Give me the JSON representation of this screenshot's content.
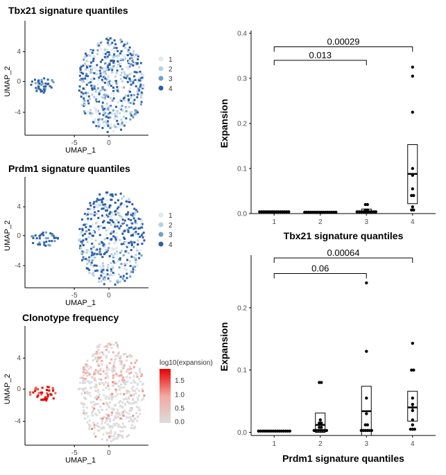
{
  "umap_panels": [
    {
      "title": "Tbx21 signature quantiles",
      "xlabel": "UMAP_1",
      "ylabel": "UMAP_2",
      "xticks": [
        "-5",
        "0"
      ],
      "yticks": [
        "4",
        "0",
        "-4"
      ],
      "legend_title": "",
      "legend": [
        "1",
        "2",
        "3",
        "4"
      ],
      "colors": [
        "#dfe9f5",
        "#b8cfe6",
        "#6e9ecb",
        "#2a5ea6"
      ]
    },
    {
      "title": "Prdm1 signature quantiles",
      "xlabel": "UMAP_1",
      "ylabel": "UMAP_2",
      "xticks": [
        "-5",
        "0"
      ],
      "yticks": [
        "4",
        "0",
        "-4"
      ],
      "legend_title": "",
      "legend": [
        "1",
        "2",
        "3",
        "4"
      ],
      "colors": [
        "#dfe9f5",
        "#b8cfe6",
        "#6e9ecb",
        "#2a5ea6"
      ]
    },
    {
      "title": "Clonotype frequency",
      "xlabel": "UMAP_1",
      "ylabel": "UMAP_2",
      "xticks": [
        "-5",
        "0"
      ],
      "yticks": [
        "4",
        "0",
        "-4"
      ],
      "legend_title": "log10(expansion)",
      "legend": [
        "1.5",
        "1.0",
        "0.5",
        "0.0"
      ],
      "colors": [
        "#e60000",
        "#f4a8a0",
        "#dcdcdc"
      ]
    }
  ],
  "chart_data": [
    {
      "type": "scatter",
      "xlabel": "Tbx21 signature quantiles",
      "ylabel": "Expansion",
      "categories": [
        "1",
        "2",
        "3",
        "4"
      ],
      "ylim": [
        0,
        0.4
      ],
      "yticks": [
        "0.0",
        "0.1",
        "0.2",
        "0.3",
        "0.4"
      ],
      "points": [
        {
          "x": "1",
          "values": [
            0.004,
            0.004,
            0.004,
            0.004,
            0.004,
            0.004,
            0.004,
            0.004,
            0.004,
            0.004,
            0.004,
            0.004,
            0.004,
            0.004,
            0.004
          ]
        },
        {
          "x": "2",
          "values": [
            0.003,
            0.003,
            0.003,
            0.003,
            0.003,
            0.003,
            0.003,
            0.003,
            0.003,
            0.003,
            0.003,
            0.003,
            0.003,
            0.003,
            0.003,
            0.003
          ]
        },
        {
          "x": "3",
          "values": [
            0.004,
            0.004,
            0.004,
            0.004,
            0.004,
            0.004,
            0.004,
            0.004,
            0.004,
            0.004,
            0.008,
            0.008,
            0.02,
            0.02
          ]
        },
        {
          "x": "4",
          "values": [
            0.325,
            0.305,
            0.225,
            0.1,
            0.085,
            0.055,
            0.04,
            0.04,
            0.015,
            0.008,
            0.008
          ]
        }
      ],
      "boxes": [
        {
          "x": "1",
          "low": 0.003,
          "median": 0.004,
          "high": 0.005
        },
        {
          "x": "2",
          "low": 0.002,
          "median": 0.003,
          "high": 0.004
        },
        {
          "x": "3",
          "low": 0.002,
          "median": 0.005,
          "high": 0.01
        },
        {
          "x": "4",
          "low": 0.022,
          "median": 0.088,
          "high": 0.153
        }
      ],
      "comparisons": [
        {
          "from": "1",
          "to": "4",
          "label": "0.00029",
          "y": 0.37
        },
        {
          "from": "1",
          "to": "3",
          "label": "0.013",
          "y": 0.34
        }
      ]
    },
    {
      "type": "scatter",
      "xlabel": "Prdm1 signature quantiles",
      "ylabel": "Expansion",
      "categories": [
        "1",
        "2",
        "3",
        "4"
      ],
      "ylim": [
        -0.005,
        0.28
      ],
      "yticks": [
        "0.0",
        "0.1",
        "0.2"
      ],
      "points": [
        {
          "x": "1",
          "values": [
            0.002,
            0.002,
            0.002,
            0.002,
            0.002,
            0.002,
            0.002,
            0.002,
            0.002,
            0.002,
            0.002,
            0.002,
            0.002,
            0.002,
            0.002,
            0.002
          ]
        },
        {
          "x": "2",
          "values": [
            0.08,
            0.08,
            0.02,
            0.015,
            0.015,
            0.008,
            0.008,
            0.003,
            0.003,
            0.003,
            0.003,
            0.003,
            0.003,
            0.003
          ]
        },
        {
          "x": "3",
          "values": [
            0.24,
            0.13,
            0.055,
            0.03,
            0.012,
            0.012,
            0.003,
            0.003,
            0.003,
            0.003,
            0.003,
            0.003
          ]
        },
        {
          "x": "4",
          "values": [
            0.143,
            0.1,
            0.1,
            0.055,
            0.045,
            0.04,
            0.035,
            0.02,
            0.012,
            0.005,
            0.005,
            0.005
          ]
        }
      ],
      "boxes": [
        {
          "x": "1",
          "low": 0.001,
          "median": 0.002,
          "high": 0.003
        },
        {
          "x": "2",
          "low": 0.0,
          "median": 0.012,
          "high": 0.031
        },
        {
          "x": "3",
          "low": -0.005,
          "median": 0.034,
          "high": 0.074
        },
        {
          "x": "4",
          "low": 0.018,
          "median": 0.04,
          "high": 0.066
        }
      ],
      "comparisons": [
        {
          "from": "1",
          "to": "4",
          "label": "0.00064",
          "y": 0.28
        },
        {
          "from": "1",
          "to": "3",
          "label": "0.06",
          "y": 0.255
        }
      ]
    }
  ]
}
